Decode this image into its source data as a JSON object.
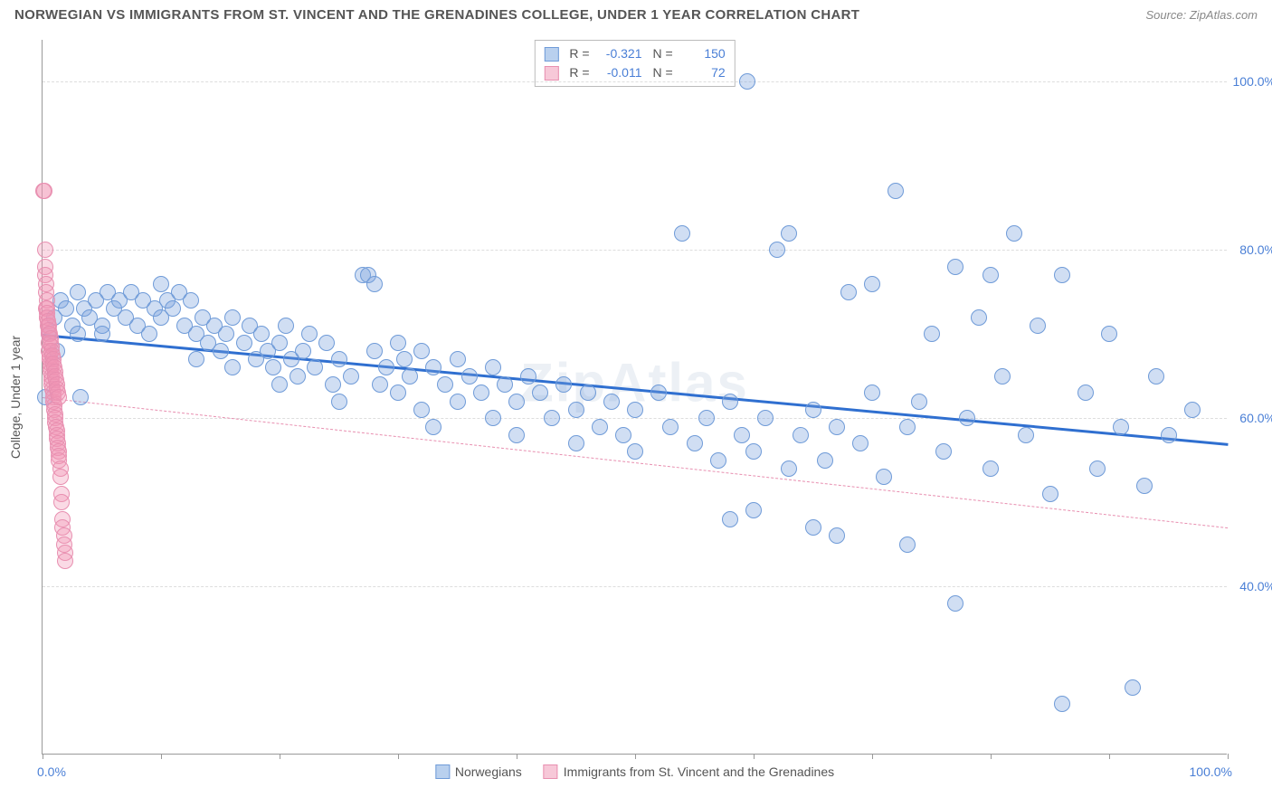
{
  "header": {
    "title": "NORWEGIAN VS IMMIGRANTS FROM ST. VINCENT AND THE GRENADINES COLLEGE, UNDER 1 YEAR CORRELATION CHART",
    "source": "Source: ZipAtlas.com"
  },
  "watermark": "ZipAtlas",
  "chart": {
    "type": "scatter",
    "xlim": [
      0,
      100
    ],
    "ylim": [
      20,
      105
    ],
    "yticks": [
      40,
      60,
      80,
      100
    ],
    "ytick_labels": [
      "40.0%",
      "60.0%",
      "80.0%",
      "100.0%"
    ],
    "xtick_positions": [
      0,
      10,
      20,
      30,
      40,
      50,
      60,
      70,
      80,
      90,
      100
    ],
    "xaxis_label_left": "0.0%",
    "xaxis_label_right": "100.0%",
    "yaxis_title": "College, Under 1 year",
    "grid_color": "#dddddd",
    "background_color": "#ffffff",
    "point_radius": 9,
    "point_stroke_width": 1.5,
    "series": [
      {
        "name": "Norwegians",
        "fill_color": "rgba(120,160,220,0.35)",
        "stroke_color": "#6f9bd8",
        "swatch_fill": "#b9d0ee",
        "swatch_border": "#6f9bd8",
        "R": "-0.321",
        "N": "150",
        "regression": {
          "y_at_x0": 70,
          "y_at_x100": 57,
          "color": "#2f6fd0",
          "width": 3,
          "dash": "solid"
        },
        "points": [
          [
            0.2,
            62.5
          ],
          [
            0.5,
            70
          ],
          [
            1,
            72
          ],
          [
            1.2,
            68
          ],
          [
            1.5,
            74
          ],
          [
            2,
            73
          ],
          [
            2.5,
            71
          ],
          [
            3,
            70
          ],
          [
            3,
            75
          ],
          [
            3.2,
            62.5
          ],
          [
            3.5,
            73
          ],
          [
            4,
            72
          ],
          [
            4.5,
            74
          ],
          [
            5,
            71
          ],
          [
            5,
            70
          ],
          [
            5.5,
            75
          ],
          [
            6,
            73
          ],
          [
            6.5,
            74
          ],
          [
            7,
            72
          ],
          [
            7.5,
            75
          ],
          [
            8,
            71
          ],
          [
            8.5,
            74
          ],
          [
            9,
            70
          ],
          [
            9.5,
            73
          ],
          [
            10,
            72
          ],
          [
            10,
            76
          ],
          [
            10.5,
            74
          ],
          [
            11,
            73
          ],
          [
            11.5,
            75
          ],
          [
            12,
            71
          ],
          [
            12.5,
            74
          ],
          [
            13,
            70
          ],
          [
            13,
            67
          ],
          [
            13.5,
            72
          ],
          [
            14,
            69
          ],
          [
            14.5,
            71
          ],
          [
            15,
            68
          ],
          [
            15.5,
            70
          ],
          [
            16,
            66
          ],
          [
            16,
            72
          ],
          [
            17,
            69
          ],
          [
            17.5,
            71
          ],
          [
            18,
            67
          ],
          [
            18.5,
            70
          ],
          [
            19,
            68
          ],
          [
            19.5,
            66
          ],
          [
            20,
            69
          ],
          [
            20,
            64
          ],
          [
            20.5,
            71
          ],
          [
            21,
            67
          ],
          [
            21.5,
            65
          ],
          [
            22,
            68
          ],
          [
            22.5,
            70
          ],
          [
            23,
            66
          ],
          [
            24,
            69
          ],
          [
            24.5,
            64
          ],
          [
            25,
            67
          ],
          [
            25,
            62
          ],
          [
            26,
            65
          ],
          [
            27,
            77
          ],
          [
            27.5,
            77
          ],
          [
            28,
            76
          ],
          [
            28,
            68
          ],
          [
            28.5,
            64
          ],
          [
            29,
            66
          ],
          [
            30,
            63
          ],
          [
            30,
            69
          ],
          [
            30.5,
            67
          ],
          [
            31,
            65
          ],
          [
            32,
            61
          ],
          [
            32,
            68
          ],
          [
            33,
            66
          ],
          [
            33,
            59
          ],
          [
            34,
            64
          ],
          [
            35,
            67
          ],
          [
            35,
            62
          ],
          [
            36,
            65
          ],
          [
            37,
            63
          ],
          [
            38,
            60
          ],
          [
            38,
            66
          ],
          [
            39,
            64
          ],
          [
            40,
            62
          ],
          [
            40,
            58
          ],
          [
            41,
            65
          ],
          [
            42,
            63
          ],
          [
            43,
            60
          ],
          [
            44,
            64
          ],
          [
            45,
            61
          ],
          [
            45,
            57
          ],
          [
            46,
            63
          ],
          [
            47,
            59
          ],
          [
            48,
            62
          ],
          [
            49,
            58
          ],
          [
            50,
            61
          ],
          [
            50,
            56
          ],
          [
            52,
            63
          ],
          [
            53,
            59
          ],
          [
            54,
            82
          ],
          [
            55,
            57
          ],
          [
            56,
            60
          ],
          [
            57,
            55
          ],
          [
            58,
            62
          ],
          [
            58,
            48
          ],
          [
            59,
            58
          ],
          [
            59.5,
            100
          ],
          [
            60,
            49
          ],
          [
            60,
            56
          ],
          [
            61,
            60
          ],
          [
            62,
            80
          ],
          [
            63,
            54
          ],
          [
            63,
            82
          ],
          [
            64,
            58
          ],
          [
            65,
            47
          ],
          [
            65,
            61
          ],
          [
            66,
            55
          ],
          [
            67,
            59
          ],
          [
            67,
            46
          ],
          [
            68,
            75
          ],
          [
            69,
            57
          ],
          [
            70,
            63
          ],
          [
            70,
            76
          ],
          [
            71,
            53
          ],
          [
            72,
            87
          ],
          [
            73,
            59
          ],
          [
            73,
            45
          ],
          [
            74,
            62
          ],
          [
            75,
            70
          ],
          [
            76,
            56
          ],
          [
            77,
            78
          ],
          [
            77,
            38
          ],
          [
            78,
            60
          ],
          [
            79,
            72
          ],
          [
            80,
            54
          ],
          [
            80,
            77
          ],
          [
            81,
            65
          ],
          [
            82,
            82
          ],
          [
            83,
            58
          ],
          [
            84,
            71
          ],
          [
            85,
            51
          ],
          [
            86,
            77
          ],
          [
            86,
            26
          ],
          [
            88,
            63
          ],
          [
            89,
            54
          ],
          [
            90,
            70
          ],
          [
            91,
            59
          ],
          [
            92,
            28
          ],
          [
            93,
            52
          ],
          [
            94,
            65
          ],
          [
            95,
            58
          ],
          [
            97,
            61
          ]
        ]
      },
      {
        "name": "Immigrants from St. Vincent and the Grenadines",
        "fill_color": "rgba(240,150,180,0.35)",
        "stroke_color": "#e88fb0",
        "swatch_fill": "#f7c8d8",
        "swatch_border": "#e88fb0",
        "R": "-0.011",
        "N": "72",
        "regression": {
          "y_at_x0": 62.5,
          "y_at_x100": 47,
          "color": "#e88fb0",
          "width": 1.5,
          "dash": "dashed"
        },
        "points": [
          [
            0.1,
            87
          ],
          [
            0.15,
            87
          ],
          [
            0.2,
            80
          ],
          [
            0.2,
            78
          ],
          [
            0.25,
            77
          ],
          [
            0.3,
            76
          ],
          [
            0.3,
            75
          ],
          [
            0.35,
            74
          ],
          [
            0.4,
            73
          ],
          [
            0.4,
            72
          ],
          [
            0.45,
            71
          ],
          [
            0.5,
            70
          ],
          [
            0.5,
            69
          ],
          [
            0.55,
            68
          ],
          [
            0.6,
            67.5
          ],
          [
            0.6,
            67
          ],
          [
            0.65,
            66.5
          ],
          [
            0.7,
            66
          ],
          [
            0.7,
            65.5
          ],
          [
            0.75,
            65
          ],
          [
            0.8,
            64.5
          ],
          [
            0.8,
            64
          ],
          [
            0.85,
            63.5
          ],
          [
            0.9,
            63
          ],
          [
            0.9,
            62.5
          ],
          [
            0.95,
            62
          ],
          [
            1,
            61.5
          ],
          [
            1,
            61
          ],
          [
            1.05,
            60.5
          ],
          [
            1.1,
            60
          ],
          [
            1.1,
            59.5
          ],
          [
            1.15,
            59
          ],
          [
            1.2,
            58.5
          ],
          [
            1.2,
            58
          ],
          [
            1.25,
            57.5
          ],
          [
            1.3,
            57
          ],
          [
            1.3,
            56.5
          ],
          [
            1.35,
            56
          ],
          [
            1.4,
            55.5
          ],
          [
            1.4,
            55
          ],
          [
            1.5,
            54
          ],
          [
            1.5,
            53
          ],
          [
            1.6,
            51
          ],
          [
            1.6,
            50
          ],
          [
            1.7,
            48
          ],
          [
            1.7,
            47
          ],
          [
            1.8,
            46
          ],
          [
            1.8,
            45
          ],
          [
            1.9,
            44
          ],
          [
            1.9,
            43
          ],
          [
            0.3,
            73
          ],
          [
            0.35,
            72.5
          ],
          [
            0.4,
            72
          ],
          [
            0.45,
            71.5
          ],
          [
            0.5,
            71
          ],
          [
            0.55,
            70.5
          ],
          [
            0.6,
            70
          ],
          [
            0.65,
            69.5
          ],
          [
            0.7,
            69
          ],
          [
            0.75,
            68.5
          ],
          [
            0.8,
            68
          ],
          [
            0.85,
            67.5
          ],
          [
            0.9,
            67
          ],
          [
            0.95,
            66.5
          ],
          [
            1,
            66
          ],
          [
            1.05,
            65.5
          ],
          [
            1.1,
            65
          ],
          [
            1.15,
            64.5
          ],
          [
            1.2,
            64
          ],
          [
            1.25,
            63.5
          ],
          [
            1.3,
            63
          ],
          [
            1.35,
            62.5
          ]
        ]
      }
    ]
  },
  "legend": {
    "items": [
      {
        "label": "Norwegians"
      },
      {
        "label": "Immigrants from St. Vincent and the Grenadines"
      }
    ]
  }
}
